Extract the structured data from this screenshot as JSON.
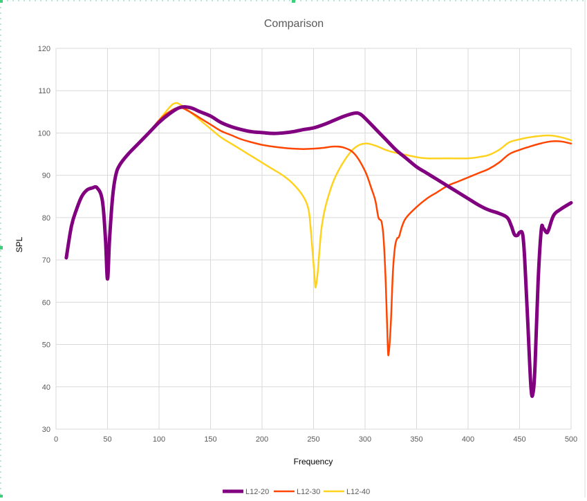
{
  "chart_data": {
    "type": "line",
    "title": "Comparison",
    "xlabel": "Frequency",
    "ylabel": "SPL",
    "xlim": [
      0,
      500
    ],
    "ylim": [
      30,
      120
    ],
    "xticks": [
      0,
      50,
      100,
      150,
      200,
      250,
      300,
      350,
      400,
      450,
      500
    ],
    "yticks": [
      30,
      40,
      50,
      60,
      70,
      80,
      90,
      100,
      110,
      120
    ],
    "grid": true,
    "legend_position": "bottom",
    "series": [
      {
        "name": "L12-20",
        "color": "#800080",
        "points": [
          [
            10,
            70.5
          ],
          [
            15,
            78
          ],
          [
            20,
            82
          ],
          [
            25,
            85
          ],
          [
            30,
            86.5
          ],
          [
            35,
            87
          ],
          [
            40,
            87
          ],
          [
            45,
            84
          ],
          [
            48,
            75
          ],
          [
            50,
            65.5
          ],
          [
            52,
            75
          ],
          [
            55,
            85
          ],
          [
            58,
            90
          ],
          [
            62,
            92.5
          ],
          [
            70,
            95
          ],
          [
            80,
            97.5
          ],
          [
            90,
            100
          ],
          [
            100,
            102.5
          ],
          [
            110,
            104.5
          ],
          [
            120,
            106
          ],
          [
            130,
            106
          ],
          [
            140,
            105
          ],
          [
            150,
            104
          ],
          [
            160,
            102.5
          ],
          [
            170,
            101.5
          ],
          [
            180,
            100.8
          ],
          [
            190,
            100.3
          ],
          [
            200,
            100.1
          ],
          [
            210,
            99.9
          ],
          [
            220,
            100
          ],
          [
            230,
            100.3
          ],
          [
            240,
            100.8
          ],
          [
            250,
            101.2
          ],
          [
            260,
            102
          ],
          [
            270,
            103
          ],
          [
            280,
            104
          ],
          [
            290,
            104.7
          ],
          [
            295,
            104.5
          ],
          [
            300,
            103.5
          ],
          [
            310,
            101
          ],
          [
            320,
            98.5
          ],
          [
            330,
            96
          ],
          [
            340,
            94
          ],
          [
            350,
            92
          ],
          [
            360,
            90.5
          ],
          [
            370,
            89
          ],
          [
            380,
            87.5
          ],
          [
            390,
            86
          ],
          [
            400,
            84.5
          ],
          [
            410,
            83
          ],
          [
            420,
            81.8
          ],
          [
            430,
            81
          ],
          [
            438,
            80
          ],
          [
            442,
            78
          ],
          [
            445,
            76
          ],
          [
            448,
            75.8
          ],
          [
            450,
            76.5
          ],
          [
            453,
            76
          ],
          [
            455,
            70
          ],
          [
            458,
            55
          ],
          [
            461,
            40
          ],
          [
            463,
            38.5
          ],
          [
            465,
            45
          ],
          [
            468,
            65
          ],
          [
            471,
            77
          ],
          [
            473,
            77.5
          ],
          [
            476,
            76.5
          ],
          [
            478,
            77
          ],
          [
            483,
            80.5
          ],
          [
            490,
            82
          ],
          [
            500,
            83.5
          ]
        ]
      },
      {
        "name": "L12-30",
        "color": "#ff4500",
        "points": [
          [
            60,
            92
          ],
          [
            70,
            95
          ],
          [
            80,
            97.5
          ],
          [
            90,
            100
          ],
          [
            100,
            103
          ],
          [
            110,
            105
          ],
          [
            120,
            106
          ],
          [
            130,
            105
          ],
          [
            140,
            103.5
          ],
          [
            150,
            102
          ],
          [
            160,
            100.5
          ],
          [
            170,
            99.5
          ],
          [
            180,
            98.5
          ],
          [
            190,
            97.8
          ],
          [
            200,
            97.2
          ],
          [
            210,
            96.8
          ],
          [
            220,
            96.5
          ],
          [
            230,
            96.3
          ],
          [
            240,
            96.2
          ],
          [
            250,
            96.3
          ],
          [
            260,
            96.5
          ],
          [
            270,
            96.8
          ],
          [
            280,
            96.5
          ],
          [
            290,
            95
          ],
          [
            300,
            91
          ],
          [
            306,
            87
          ],
          [
            310,
            84
          ],
          [
            313,
            80
          ],
          [
            316,
            79
          ],
          [
            318,
            75
          ],
          [
            320,
            65
          ],
          [
            322,
            50
          ],
          [
            323,
            48
          ],
          [
            325,
            55
          ],
          [
            327,
            67
          ],
          [
            329,
            73
          ],
          [
            331,
            75
          ],
          [
            333,
            75.5
          ],
          [
            336,
            78
          ],
          [
            340,
            80
          ],
          [
            350,
            82.5
          ],
          [
            360,
            84.5
          ],
          [
            370,
            86
          ],
          [
            380,
            87.5
          ],
          [
            390,
            88.5
          ],
          [
            400,
            89.5
          ],
          [
            410,
            90.5
          ],
          [
            420,
            91.5
          ],
          [
            430,
            93
          ],
          [
            440,
            95
          ],
          [
            450,
            96
          ],
          [
            460,
            96.8
          ],
          [
            470,
            97.5
          ],
          [
            480,
            98
          ],
          [
            490,
            98
          ],
          [
            500,
            97.5
          ]
        ]
      },
      {
        "name": "L12-40",
        "color": "#ffd21f",
        "points": [
          [
            60,
            92
          ],
          [
            70,
            95
          ],
          [
            80,
            97.5
          ],
          [
            90,
            100
          ],
          [
            100,
            103
          ],
          [
            110,
            106
          ],
          [
            115,
            107
          ],
          [
            120,
            106.8
          ],
          [
            130,
            105
          ],
          [
            140,
            103
          ],
          [
            150,
            101
          ],
          [
            160,
            99
          ],
          [
            170,
            97.5
          ],
          [
            180,
            96
          ],
          [
            190,
            94.5
          ],
          [
            200,
            93
          ],
          [
            210,
            91.5
          ],
          [
            220,
            90
          ],
          [
            230,
            88
          ],
          [
            240,
            85
          ],
          [
            245,
            82
          ],
          [
            247,
            78
          ],
          [
            249,
            72
          ],
          [
            251,
            66
          ],
          [
            252,
            63.5
          ],
          [
            254,
            67
          ],
          [
            256,
            73
          ],
          [
            258,
            78
          ],
          [
            262,
            83
          ],
          [
            270,
            89
          ],
          [
            280,
            93.5
          ],
          [
            290,
            96.5
          ],
          [
            300,
            97.5
          ],
          [
            310,
            97
          ],
          [
            320,
            96
          ],
          [
            330,
            95.3
          ],
          [
            340,
            94.8
          ],
          [
            350,
            94.3
          ],
          [
            360,
            94
          ],
          [
            380,
            94
          ],
          [
            400,
            94
          ],
          [
            410,
            94.3
          ],
          [
            420,
            94.8
          ],
          [
            430,
            96
          ],
          [
            440,
            97.8
          ],
          [
            450,
            98.5
          ],
          [
            460,
            99
          ],
          [
            470,
            99.3
          ],
          [
            480,
            99.4
          ],
          [
            490,
            99
          ],
          [
            500,
            98.3
          ]
        ]
      }
    ]
  }
}
